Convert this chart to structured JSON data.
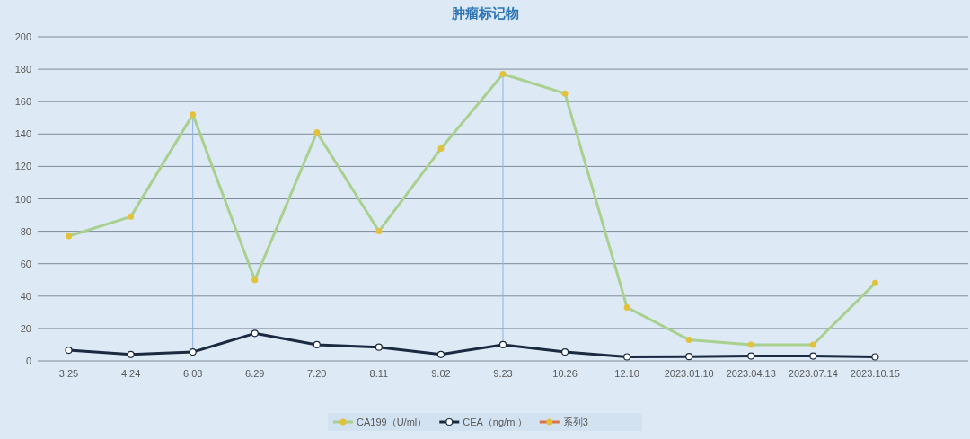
{
  "chart_data": {
    "type": "line",
    "title": "肿瘤标记物",
    "categories": [
      "3.25",
      "4.24",
      "6.08",
      "6.29",
      "7.20",
      "8.11",
      "9.02",
      "9.23",
      "10.26",
      "12.10",
      "2023.01.10",
      "2023.04.13",
      "2023.07.14",
      "2023.10.15"
    ],
    "series": [
      {
        "name": "CA199（U/ml）",
        "color": "#a9d08e",
        "values": [
          77,
          89,
          152,
          50,
          141,
          80,
          131,
          177,
          165,
          33,
          13,
          10,
          10,
          48
        ]
      },
      {
        "name": "CEA（ng/ml）",
        "color": "#1b2a40",
        "values": [
          6.6,
          4,
          5.5,
          17,
          10,
          8.5,
          4,
          10,
          5.5,
          2.5,
          2.7,
          3,
          3,
          2.5
        ]
      },
      {
        "name": "系列3",
        "color": "#d9734a",
        "values": [
          null,
          null,
          null,
          null,
          null,
          null,
          null,
          null,
          null,
          null,
          null,
          null,
          null,
          null
        ]
      }
    ],
    "ref_lines": [
      {
        "axis": "x",
        "value": "6.08",
        "color": "#8fb4e3"
      },
      {
        "axis": "x",
        "value": "9.23",
        "color": "#8fb4e3"
      }
    ],
    "ylim": [
      0,
      200
    ],
    "yticks": [
      0,
      20,
      40,
      60,
      80,
      100,
      120,
      140,
      160,
      180,
      200
    ],
    "grid": "y",
    "legend": "bottom",
    "marker": "circle",
    "line_style": "solid"
  }
}
